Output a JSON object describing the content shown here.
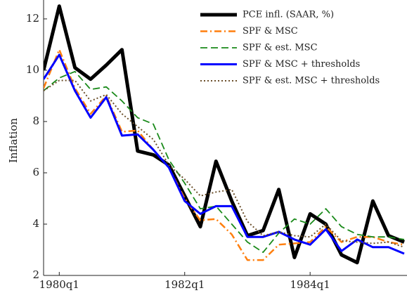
{
  "chart_data": {
    "type": "line",
    "y_label": "Inflation",
    "x": [
      1979.75,
      1980.0,
      1980.25,
      1980.5,
      1980.75,
      1981.0,
      1981.25,
      1981.5,
      1981.75,
      1982.0,
      1982.25,
      1982.5,
      1982.75,
      1983.0,
      1983.25,
      1983.5,
      1983.75,
      1984.0,
      1984.25,
      1984.5,
      1984.75,
      1985.0,
      1985.25,
      1985.5
    ],
    "xlim": [
      1979.75,
      1985.5
    ],
    "xticks": [
      {
        "value": 1980.0,
        "label": "1980q1"
      },
      {
        "value": 1982.0,
        "label": "1982q1"
      },
      {
        "value": 1984.0,
        "label": "1984q1"
      }
    ],
    "ylim": [
      2,
      12.6
    ],
    "yticks": [
      2,
      4,
      6,
      8,
      10,
      12
    ],
    "legend": "upper right",
    "series": [
      {
        "name": "PCE infl. (SAAR, %)",
        "color": "#000000",
        "style": "solid",
        "width": 5,
        "values": [
          10.0,
          12.5,
          10.1,
          9.65,
          10.2,
          10.8,
          6.85,
          6.7,
          6.3,
          5.1,
          3.9,
          6.45,
          4.9,
          3.55,
          3.75,
          5.35,
          2.7,
          4.4,
          4.0,
          2.8,
          2.5,
          4.9,
          3.55,
          3.3
        ]
      },
      {
        "name": "SPF & MSC",
        "color": "#ff7f0e",
        "style": "dashdot",
        "width": 2.5,
        "values": [
          9.3,
          10.8,
          9.3,
          8.3,
          9.0,
          7.6,
          7.65,
          6.9,
          6.2,
          5.0,
          4.15,
          4.2,
          3.6,
          2.6,
          2.6,
          3.2,
          3.25,
          3.3,
          3.9,
          3.3,
          3.5,
          3.5,
          3.3,
          3.2
        ]
      },
      {
        "name": "SPF & est. MSC",
        "color": "#1a8a1a",
        "style": "dashed",
        "width": 1.8,
        "values": [
          9.2,
          9.7,
          9.95,
          9.25,
          9.35,
          8.8,
          8.15,
          7.9,
          6.5,
          5.6,
          4.6,
          4.7,
          4.0,
          3.3,
          2.9,
          3.65,
          4.2,
          4.0,
          4.6,
          3.9,
          3.6,
          3.5,
          3.5,
          3.4
        ]
      },
      {
        "name": "SPF & MSC + thresholds",
        "color": "#0000ff",
        "style": "solid",
        "width": 3,
        "values": [
          9.65,
          10.6,
          9.2,
          8.15,
          8.95,
          7.45,
          7.5,
          6.9,
          6.2,
          4.9,
          4.4,
          4.7,
          4.7,
          3.5,
          3.5,
          3.7,
          3.4,
          3.2,
          3.8,
          2.95,
          3.4,
          3.1,
          3.1,
          2.85
        ]
      },
      {
        "name": "SPF & est. MSC + thresholds",
        "color": "#6b4f2a",
        "style": "dotted",
        "width": 2,
        "values": [
          9.2,
          9.6,
          9.6,
          8.8,
          9.05,
          8.3,
          7.8,
          7.3,
          6.3,
          5.75,
          5.1,
          5.25,
          5.35,
          4.1,
          3.55,
          3.7,
          3.55,
          3.5,
          4.0,
          3.35,
          3.3,
          3.25,
          3.3,
          3.1
        ]
      }
    ]
  }
}
